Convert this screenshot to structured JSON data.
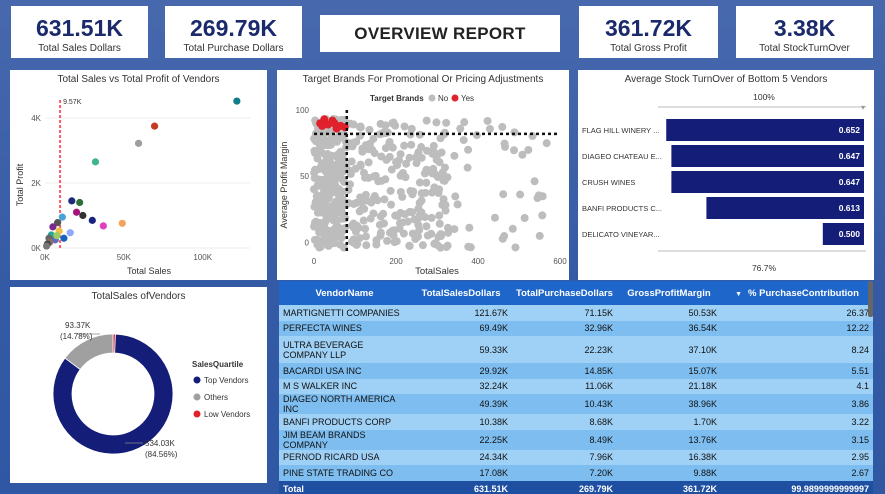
{
  "kpis": [
    {
      "value": "631.51K",
      "label": "Total Sales Dollars"
    },
    {
      "value": "269.79K",
      "label": "Total Purchase Dollars"
    },
    {
      "value": "361.72K",
      "label": "Total Gross Profit"
    },
    {
      "value": "3.38K",
      "label": "Total StockTurnOver"
    }
  ],
  "report_title": "OVERVIEW REPORT",
  "colors": {
    "navy": "#141e78",
    "accent_blue": "#1e66c9",
    "red": "#e0202b",
    "gray": "#bdbdbd"
  },
  "chart_data": [
    {
      "type": "scatter",
      "title": "Total Sales vs Total Profit of Vendors",
      "xlabel": "Total Sales",
      "ylabel": "Total Profit",
      "xlim": [
        0,
        130000
      ],
      "ylim": [
        0,
        4800
      ],
      "x_ticks": [
        "0K",
        "50K",
        "100K"
      ],
      "y_ticks": [
        "0K",
        "2K",
        "4K"
      ],
      "reference_line": {
        "x": 9570,
        "label": "9.57K"
      },
      "points": [
        {
          "x": 121670,
          "y": 4520,
          "color": "#0f7e8a"
        },
        {
          "x": 69490,
          "y": 3750,
          "color": "#c23b22"
        },
        {
          "x": 59330,
          "y": 3220,
          "color": "#9e9e9e"
        },
        {
          "x": 32000,
          "y": 2650,
          "color": "#3fb58f"
        },
        {
          "x": 17000,
          "y": 1450,
          "color": "#1b2a7a"
        },
        {
          "x": 22000,
          "y": 1400,
          "color": "#2d6f3a"
        },
        {
          "x": 20000,
          "y": 1100,
          "color": "#a6127a"
        },
        {
          "x": 24000,
          "y": 1000,
          "color": "#333333"
        },
        {
          "x": 30000,
          "y": 850,
          "color": "#1a237e"
        },
        {
          "x": 49000,
          "y": 760,
          "color": "#f5a35c"
        },
        {
          "x": 37000,
          "y": 680,
          "color": "#e040c0"
        },
        {
          "x": 16000,
          "y": 470,
          "color": "#8fa8ff"
        },
        {
          "x": 11000,
          "y": 950,
          "color": "#4aa3d6"
        },
        {
          "x": 8000,
          "y": 780,
          "color": "#555555"
        },
        {
          "x": 5000,
          "y": 650,
          "color": "#7a2a8a"
        },
        {
          "x": 9000,
          "y": 520,
          "color": "#f0c040"
        },
        {
          "x": 4000,
          "y": 400,
          "color": "#26a69a"
        },
        {
          "x": 2500,
          "y": 300,
          "color": "#666666"
        },
        {
          "x": 6500,
          "y": 250,
          "color": "#5c6bc0"
        },
        {
          "x": 3000,
          "y": 180,
          "color": "#8d6e63"
        },
        {
          "x": 1500,
          "y": 120,
          "color": "#444444"
        },
        {
          "x": 7500,
          "y": 380,
          "color": "#9ccc65"
        },
        {
          "x": 1000,
          "y": 60,
          "color": "#777777"
        },
        {
          "x": 12000,
          "y": 300,
          "color": "#1565c0"
        }
      ]
    },
    {
      "type": "scatter",
      "title": "Target Brands For Promotional Or Pricing Adjustments",
      "xlabel": "TotalSales",
      "ylabel": "Average Profit Margin",
      "xlim": [
        0,
        600
      ],
      "ylim": [
        -8,
        100
      ],
      "x_ticks": [
        0,
        200,
        400,
        600
      ],
      "y_ticks": [
        0,
        50,
        100
      ],
      "legend_title": "Target Brands",
      "legend": [
        {
          "name": "No",
          "color": "#bdbdbd"
        },
        {
          "name": "Yes",
          "color": "#e0202b"
        }
      ],
      "threshold_x": 80,
      "threshold_y": 82,
      "yes_points": [
        [
          15,
          90
        ],
        [
          25,
          93
        ],
        [
          35,
          89
        ],
        [
          45,
          92
        ],
        [
          55,
          86
        ],
        [
          65,
          88
        ],
        [
          75,
          87
        ],
        [
          20,
          88
        ],
        [
          50,
          90
        ]
      ]
    },
    {
      "type": "bar",
      "orientation": "horizontal",
      "title": "Average Stock TurnOver of Bottom 5 Vendors",
      "categories": [
        "FLAG HILL WINERY ...",
        "DIAGEO CHATEAU E...",
        "CRUSH WINES",
        "BANFI PRODUCTS C...",
        "DELICATO VINEYAR..."
      ],
      "values": [
        0.652,
        0.647,
        0.647,
        0.613,
        0.5
      ],
      "value_labels": [
        "0.652",
        "0.647",
        "0.647",
        "0.613",
        "0.500"
      ],
      "top_label": "100%",
      "bottom_label": "76.7%",
      "xlim": [
        0.46,
        0.66
      ]
    },
    {
      "type": "pie",
      "donut": true,
      "title": "TotalSales ofVendors",
      "legend_title": "SalesQuartile",
      "slices": [
        {
          "name": "Top Vendors",
          "value": 534030,
          "color": "#141e78",
          "label": "534.03K",
          "pct": "(84.56%)"
        },
        {
          "name": "Others",
          "value": 93370,
          "color": "#a0a0a0",
          "label": "93.37K",
          "pct": "(14.78%)"
        },
        {
          "name": "Low Vendors",
          "value": 4110,
          "color": "#e0202b"
        }
      ]
    },
    {
      "type": "table",
      "columns": [
        "VendorName",
        "TotalSalesDollars",
        "TotalPurchaseDollars",
        "GrossProfitMargin",
        "% PurchaseContribution"
      ],
      "rows": [
        [
          "MARTIGNETTI COMPANIES",
          "121.67K",
          "71.15K",
          "50.53K",
          "26.37"
        ],
        [
          "PERFECTA WINES",
          "69.49K",
          "32.96K",
          "36.54K",
          "12.22"
        ],
        [
          "ULTRA BEVERAGE COMPANY LLP",
          "59.33K",
          "22.23K",
          "37.10K",
          "8.24"
        ],
        [
          "BACARDI USA INC",
          "29.92K",
          "14.85K",
          "15.07K",
          "5.51"
        ],
        [
          "M S WALKER INC",
          "32.24K",
          "11.06K",
          "21.18K",
          "4.1"
        ],
        [
          "DIAGEO NORTH AMERICA INC",
          "49.39K",
          "10.43K",
          "38.96K",
          "3.86"
        ],
        [
          "BANFI PRODUCTS CORP",
          "10.38K",
          "8.68K",
          "1.70K",
          "3.22"
        ],
        [
          "JIM BEAM BRANDS COMPANY",
          "22.25K",
          "8.49K",
          "13.76K",
          "3.15"
        ],
        [
          "PERNOD RICARD USA",
          "24.34K",
          "7.96K",
          "16.38K",
          "2.95"
        ],
        [
          "PINE STATE TRADING CO",
          "17.08K",
          "7.20K",
          "9.88K",
          "2.67"
        ]
      ],
      "total": [
        "Total",
        "631.51K",
        "269.79K",
        "361.72K",
        "99.9899999999997"
      ]
    }
  ]
}
